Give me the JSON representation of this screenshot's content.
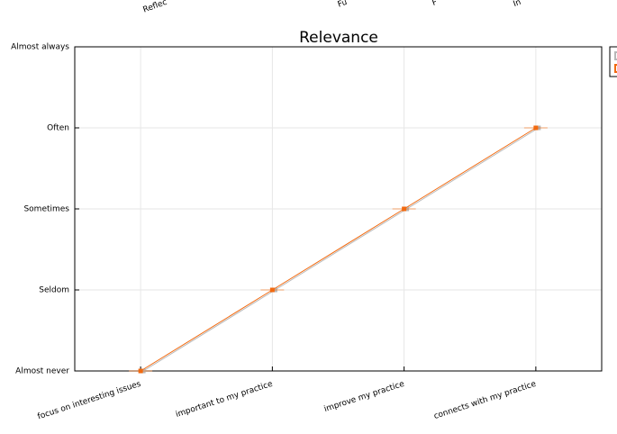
{
  "chart_data": {
    "type": "line",
    "title": "Relevance",
    "clipped_labels": [
      "Reflec",
      "Fu",
      "F",
      "In"
    ],
    "categories": [
      "focus on interesting issues",
      "important to my practice",
      "improve my practice",
      "connects with my practice"
    ],
    "series": [
      {
        "color": "#b8b8b8",
        "values": [
          1,
          2,
          3,
          4
        ]
      },
      {
        "color": "#f26a10",
        "values": [
          1,
          2,
          3,
          4
        ]
      }
    ],
    "ylim": [
      1,
      5
    ],
    "yticks": [
      {
        "value": 1,
        "label": "Almost never"
      },
      {
        "value": 2,
        "label": "Seldom"
      },
      {
        "value": 3,
        "label": "Sometimes"
      },
      {
        "value": 4,
        "label": "Often"
      },
      {
        "value": 5,
        "label": "Almost always"
      }
    ],
    "grid": true
  }
}
